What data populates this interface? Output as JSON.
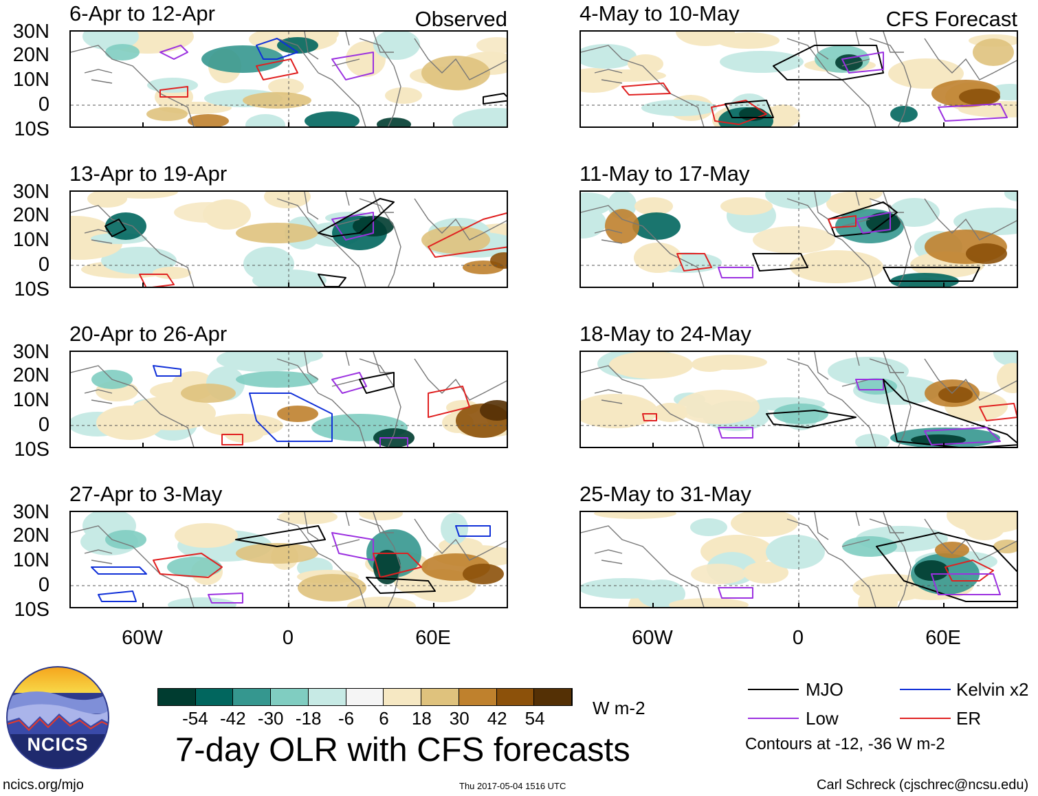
{
  "panels": [
    {
      "label": "6-Apr to 12-Apr",
      "tag": "Observed"
    },
    {
      "label": "13-Apr to 19-Apr",
      "tag": ""
    },
    {
      "label": "20-Apr to 26-Apr",
      "tag": ""
    },
    {
      "label": "27-Apr to 3-May",
      "tag": ""
    },
    {
      "label": "4-May to 10-May",
      "tag": "CFS Forecast"
    },
    {
      "label": "11-May to 17-May",
      "tag": ""
    },
    {
      "label": "18-May to 24-May",
      "tag": ""
    },
    {
      "label": "25-May to 31-May",
      "tag": ""
    }
  ],
  "lat_ticks": [
    "30N",
    "20N",
    "10N",
    "0",
    "10S"
  ],
  "lon_ticks": [
    "60W",
    "0",
    "60E"
  ],
  "colorbar": {
    "labels": [
      "-54",
      "-42",
      "-30",
      "-18",
      "-6",
      "6",
      "18",
      "30",
      "42",
      "54"
    ],
    "colors": [
      "#003c30",
      "#01665e",
      "#35978f",
      "#80cdc1",
      "#c7eae5",
      "#f5f5f5",
      "#f6e8c3",
      "#dfc27d",
      "#bf812d",
      "#8c510a",
      "#543005"
    ],
    "units": "W m-2"
  },
  "legend": {
    "mjo": {
      "label": "MJO",
      "color": "#000000"
    },
    "kelvin": {
      "label": "Kelvin x2",
      "color": "#1030d8"
    },
    "low": {
      "label": "Low",
      "color": "#9b30e0"
    },
    "er": {
      "label": "ER",
      "color": "#e02020"
    },
    "note": "Contours at -12, -36 W m-2"
  },
  "title": "7-day OLR with CFS forecasts",
  "logo": {
    "text": "NCICS"
  },
  "footer": {
    "url": "ncics.org/mjo",
    "timestamp": "Thu 2017-05-04 1516 UTC",
    "credit": "Carl Schreck (cjschrec@ncsu.edu)"
  }
}
